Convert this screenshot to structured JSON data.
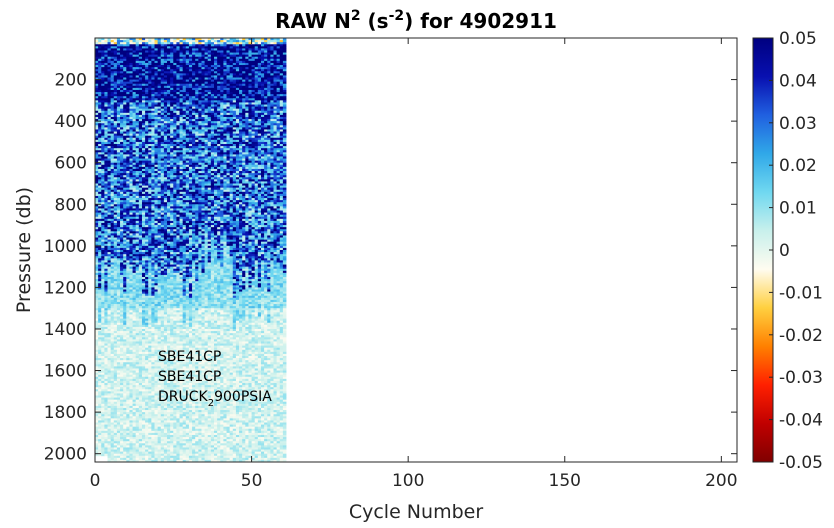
{
  "chart_data": {
    "type": "heatmap",
    "title": {
      "prefix": "RAW N",
      "sup1": "2",
      "middle": " (s",
      "sup2": "-2",
      "suffix": ") for 4902911"
    },
    "xlabel": "Cycle Number",
    "ylabel": "Pressure (db)",
    "xlim": [
      0,
      205
    ],
    "ylim": [
      2040,
      0
    ],
    "y_reversed": true,
    "grid": false,
    "x_ticks": [
      0,
      50,
      100,
      150,
      200
    ],
    "y_ticks": [
      200,
      400,
      600,
      800,
      1000,
      1200,
      1400,
      1600,
      1800,
      2000
    ],
    "colorbar": {
      "min": -0.05,
      "max": 0.05,
      "ticks": [
        "0.05",
        "0.04",
        "0.03",
        "0.02",
        "0.01",
        "0",
        "-0.01",
        "-0.02",
        "-0.03",
        "-0.04",
        "-0.05"
      ],
      "colormap": [
        "#800000",
        "#c00000",
        "#ff2000",
        "#ff8000",
        "#ffd040",
        "#fffcf0",
        "#c8f0ec",
        "#70d8f0",
        "#30a8e8",
        "#2060e0",
        "#0810b0",
        "#000080"
      ]
    },
    "data_extent": {
      "cycle_start": 1,
      "cycle_end": 61,
      "pressure_min": 0,
      "pressure_max": 2040
    },
    "typical_values": [
      {
        "pressure_range": [
          0,
          300
        ],
        "value": 0.045
      },
      {
        "pressure_range": [
          300,
          1100
        ],
        "value": 0.03
      },
      {
        "pressure_range": [
          1100,
          1300
        ],
        "value": 0.01
      },
      {
        "pressure_range": [
          1300,
          2040
        ],
        "value": 0.003
      }
    ],
    "annotations": [
      {
        "text": "SBE41CP"
      },
      {
        "text": "SBE41CP"
      },
      {
        "text": "DRUCK",
        "sub": "2",
        "rest": "900PSIA"
      }
    ]
  }
}
